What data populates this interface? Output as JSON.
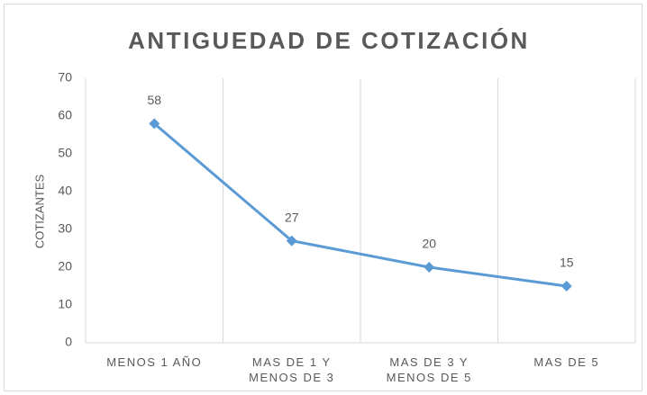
{
  "chart_data": {
    "type": "line",
    "title": "ANTIGUEDAD DE COTIZACIÓN",
    "y_label": "COTIZANTES",
    "categories": [
      "MENOS 1 AÑO",
      "MAS DE 1 Y MENOS DE 3",
      "MAS DE 3 Y MENOS DE 5",
      "MAS DE 5"
    ],
    "series": [
      {
        "name": "COTIZANTES",
        "color": "#5b9bd5",
        "values": [
          58,
          27,
          20,
          15
        ]
      }
    ],
    "ylim": [
      0,
      70
    ],
    "yticks": [
      0,
      10,
      20,
      30,
      40,
      50,
      60,
      70
    ],
    "grid": true
  }
}
